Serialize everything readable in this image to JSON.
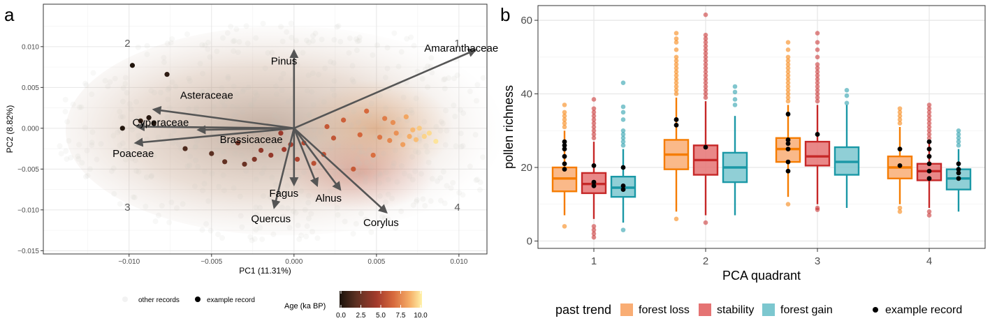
{
  "panels": {
    "a": {
      "letter": "a"
    },
    "b": {
      "letter": "b"
    }
  },
  "chart_data": [
    {
      "type": "scatter",
      "panel": "a",
      "xlabel": "PC1 (11.31%)",
      "ylabel": "PC2 (8.82%)",
      "xlim": [
        -0.0152,
        0.0117
      ],
      "ylim": [
        -0.0154,
        0.0152
      ],
      "xticks": [
        -0.01,
        -0.005,
        0,
        0.005,
        0.01
      ],
      "xtick_labels": [
        "−0.010",
        "−0.005",
        "0.000",
        "0.005",
        "0.010"
      ],
      "yticks": [
        -0.015,
        -0.01,
        -0.005,
        0,
        0.005,
        0.01
      ],
      "ytick_labels": [
        "−0.015",
        "−0.010",
        "−0.005",
        "0.000",
        "0.005",
        "0.010"
      ],
      "grid": true,
      "quadrant_labels": [
        {
          "text": "1",
          "x": 0.0099,
          "y": 0.01
        },
        {
          "text": "2",
          "x": -0.0101,
          "y": 0.01
        },
        {
          "text": "3",
          "x": -0.0101,
          "y": -0.0101
        },
        {
          "text": "4",
          "x": 0.0099,
          "y": -0.0101
        }
      ],
      "loadings": [
        {
          "name": "Amaranthaceae",
          "x": 0.011,
          "y": 0.0096,
          "lx": 0.0079,
          "ly": 0.0094
        },
        {
          "name": "Pinus",
          "x": 0.0,
          "y": 0.0095,
          "lx": -0.0014,
          "ly": 0.0078
        },
        {
          "name": "Asteraceae",
          "x": -0.0085,
          "y": 0.0023,
          "lx": -0.0069,
          "ly": 0.0036
        },
        {
          "name": "Cyperaceae",
          "x": -0.0095,
          "y": 0.0002,
          "lx": -0.0098,
          "ly": 0.0003
        },
        {
          "name": "Poaceae",
          "x": -0.0096,
          "y": -0.0018,
          "lx": -0.011,
          "ly": -0.0035
        },
        {
          "name": "Brassicaceae",
          "x": -0.0058,
          "y": -0.0002,
          "lx": -0.0045,
          "ly": -0.0018
        },
        {
          "name": "Fagus",
          "x": -0.0012,
          "y": -0.0097,
          "lx": -0.0015,
          "ly": -0.0084
        },
        {
          "name": "Quercus",
          "x": 0.0,
          "y": -0.0069,
          "lx": -0.0026,
          "ly": -0.0115
        },
        {
          "name": "Alnus",
          "x": 0.0014,
          "y": -0.007,
          "lx": 0.0013,
          "ly": -0.009
        },
        {
          "name": "Corylus",
          "x": 0.0028,
          "y": -0.0075,
          "lx": 0.0042,
          "ly": -0.012
        },
        {
          "name": "_Corylus_arrow",
          "x": 0.0056,
          "y": -0.0103,
          "lx": 0,
          "ly": 0
        }
      ],
      "example_records": [
        {
          "x": -0.0098,
          "y": 0.0077,
          "age": 0.2
        },
        {
          "x": -0.0077,
          "y": 0.0066,
          "age": 0.6
        },
        {
          "x": -0.0088,
          "y": 0.0013,
          "age": 0.4
        },
        {
          "x": -0.0085,
          "y": 0.0006,
          "age": 0.5
        },
        {
          "x": -0.0104,
          "y": 0.0,
          "age": 0.3
        },
        {
          "x": -0.0093,
          "y": 0.0009,
          "age": 0.7
        },
        {
          "x": -0.0066,
          "y": -0.0025,
          "age": 1.6
        },
        {
          "x": -0.005,
          "y": -0.0031,
          "age": 2.0
        },
        {
          "x": -0.0042,
          "y": -0.0041,
          "age": 2.2
        },
        {
          "x": -0.0034,
          "y": -0.0018,
          "age": 2.6
        },
        {
          "x": -0.003,
          "y": -0.0044,
          "age": 2.4
        },
        {
          "x": -0.002,
          "y": -0.0027,
          "age": 3.4
        },
        {
          "x": -0.0014,
          "y": -0.0033,
          "age": 3.6
        },
        {
          "x": -0.0008,
          "y": -0.0006,
          "age": 3.8
        },
        {
          "x": -0.0002,
          "y": -0.002,
          "age": 4.2
        },
        {
          "x": 0.0006,
          "y": -0.0018,
          "age": 4.6
        },
        {
          "x": 0.0012,
          "y": -0.0043,
          "age": 4.9
        },
        {
          "x": 0.0018,
          "y": -0.0032,
          "age": 5.1
        },
        {
          "x": 0.0024,
          "y": -0.0012,
          "age": 5.2
        },
        {
          "x": 0.003,
          "y": 0.001,
          "age": 5.6
        },
        {
          "x": 0.0036,
          "y": -0.005,
          "age": 5.4
        },
        {
          "x": 0.004,
          "y": -0.0008,
          "age": 5.9
        },
        {
          "x": 0.0044,
          "y": 0.0021,
          "age": 6.0
        },
        {
          "x": 0.0048,
          "y": -0.0033,
          "age": 6.2
        },
        {
          "x": 0.0052,
          "y": -0.0011,
          "age": 6.4
        },
        {
          "x": 0.0055,
          "y": 0.0012,
          "age": 6.6
        },
        {
          "x": 0.0058,
          "y": -0.0015,
          "age": 6.9
        },
        {
          "x": 0.006,
          "y": 0.0007,
          "age": 7.1
        },
        {
          "x": 0.0062,
          "y": -0.0006,
          "age": 7.2
        },
        {
          "x": 0.0066,
          "y": -0.002,
          "age": 7.6
        },
        {
          "x": 0.0068,
          "y": 0.0014,
          "age": 7.8
        },
        {
          "x": 0.007,
          "y": -0.001,
          "age": 8.0
        },
        {
          "x": 0.0072,
          "y": -0.0002,
          "age": 8.3
        },
        {
          "x": 0.0074,
          "y": -0.0014,
          "age": 8.5
        },
        {
          "x": 0.0076,
          "y": 0.0,
          "age": 8.8
        },
        {
          "x": 0.0079,
          "y": -0.001,
          "age": 9.1
        },
        {
          "x": 0.0082,
          "y": -0.0006,
          "age": 9.3
        },
        {
          "x": 0.0086,
          "y": -0.0016,
          "age": 9.6
        },
        {
          "x": -0.0006,
          "y": -0.0026,
          "age": 3.9
        },
        {
          "x": 0.0002,
          "y": -0.0038,
          "age": 4.4
        },
        {
          "x": 0.002,
          "y": 0.0002,
          "age": 5.3
        },
        {
          "x": -0.0024,
          "y": -0.0038,
          "age": 3.0
        }
      ],
      "legend": {
        "other_records": "other records",
        "example_record": "example record",
        "colorbar_title": "Age (ka BP)",
        "colorbar_ticks": [
          "0.0",
          "2.5",
          "5.0",
          "7.5",
          "10.0"
        ],
        "colorbar_range": [
          0,
          10
        ],
        "colors": [
          "#1a120b",
          "#5b3022",
          "#a23a2c",
          "#d6683c",
          "#f5ad67",
          "#fff2a8"
        ]
      }
    },
    {
      "type": "boxplot",
      "panel": "b",
      "xlabel": "PCA quadrant",
      "ylabel": "pollen richness",
      "categories": [
        "1",
        "2",
        "3",
        "4"
      ],
      "ylim": [
        -2,
        64
      ],
      "yticks": [
        0,
        20,
        40,
        60
      ],
      "grid": true,
      "series": [
        {
          "name": "forest loss",
          "color": "#f57c00",
          "fill": "#f9ad74",
          "boxes": [
            {
              "q1": 13.5,
              "median": 17,
              "q3": 20,
              "whisker_low": 7,
              "whisker_high": 30,
              "outliers": [
                4,
                31,
                32,
                33,
                34,
                35,
                37
              ]
            },
            {
              "q1": 19.5,
              "median": 23.5,
              "q3": 27.5,
              "whisker_low": 8,
              "whisker_high": 39,
              "outliers": [
                6,
                40,
                41,
                42,
                43,
                44,
                45,
                46,
                47,
                48,
                49,
                50,
                52,
                54,
                55,
                56.5
              ]
            },
            {
              "q1": 21.5,
              "median": 25,
              "q3": 28,
              "whisker_low": 12,
              "whisker_high": 37,
              "outliers": [
                10,
                38,
                39,
                40,
                41,
                42,
                43,
                44,
                45,
                46,
                47,
                48,
                49,
                50,
                52,
                54
              ]
            },
            {
              "q1": 17,
              "median": 20,
              "q3": 23,
              "whisker_low": 10,
              "whisker_high": 31,
              "outliers": [
                8,
                9,
                32,
                33,
                34,
                35,
                36
              ]
            }
          ]
        },
        {
          "name": "stability",
          "color": "#c62828",
          "fill": "#e57373",
          "boxes": [
            {
              "q1": 13,
              "median": 15.5,
              "q3": 18.5,
              "whisker_low": 6,
              "whisker_high": 27,
              "outliers": [
                1,
                2,
                3,
                4,
                28,
                29,
                30,
                31,
                32,
                33,
                34,
                35,
                36,
                38.5
              ]
            },
            {
              "q1": 18,
              "median": 22,
              "q3": 26,
              "whisker_low": 7,
              "whisker_high": 38,
              "outliers": [
                5,
                39,
                40,
                41,
                42,
                43,
                44,
                45,
                46,
                47,
                48,
                49,
                50,
                51,
                52,
                53,
                54,
                55,
                56,
                61.5
              ]
            },
            {
              "q1": 20.5,
              "median": 23,
              "q3": 27,
              "whisker_low": 10,
              "whisker_high": 37,
              "outliers": [
                8.5,
                9,
                38,
                39,
                40,
                41,
                42,
                43,
                44,
                45,
                46,
                47,
                48,
                50,
                52,
                54,
                56.5
              ]
            },
            {
              "q1": 16.5,
              "median": 19,
              "q3": 21,
              "whisker_low": 9,
              "whisker_high": 27,
              "outliers": [
                7,
                8,
                28,
                29,
                30,
                31,
                32,
                33,
                34,
                35,
                36,
                37
              ]
            }
          ]
        },
        {
          "name": "forest gain",
          "color": "#1a98a6",
          "fill": "#7cc7cf",
          "boxes": [
            {
              "q1": 12,
              "median": 14.5,
              "q3": 17.5,
              "whisker_low": 5,
              "whisker_high": 25,
              "outliers": [
                3,
                26,
                27,
                28,
                29,
                30,
                33,
                35,
                36.5,
                43
              ]
            },
            {
              "q1": 16,
              "median": 20,
              "q3": 24,
              "whisker_low": 7,
              "whisker_high": 34,
              "outliers": [
                37,
                38.5,
                40.5,
                42
              ]
            },
            {
              "q1": 18,
              "median": 21.5,
              "q3": 25.5,
              "whisker_low": 9,
              "whisker_high": 37,
              "outliers": [
                37.5,
                39.5,
                41
              ]
            },
            {
              "q1": 14,
              "median": 17,
              "q3": 19.5,
              "whisker_low": 8,
              "whisker_high": 25,
              "outliers": [
                26,
                27,
                28,
                29,
                30
              ]
            }
          ]
        }
      ],
      "example_records": [
        [
          [
            23,
            26,
            27,
            25,
            21,
            19.5
          ],
          [
            15,
            16,
            20.5
          ],
          [
            15,
            20,
            14
          ]
        ],
        [
          [
            33,
            31.5
          ],
          [
            25.5
          ],
          []
        ],
        [
          [
            34.5,
            27.5,
            26.5,
            25,
            21.5,
            19
          ],
          [
            29
          ],
          []
        ],
        [
          [
            25,
            20.5
          ],
          [
            27,
            25,
            23,
            21,
            19,
            17
          ],
          [
            21,
            19.5,
            18.5,
            17
          ]
        ]
      ],
      "legend": {
        "title": "past trend",
        "items": [
          "forest loss",
          "stability",
          "forest gain"
        ],
        "example_record": "example record"
      }
    }
  ]
}
